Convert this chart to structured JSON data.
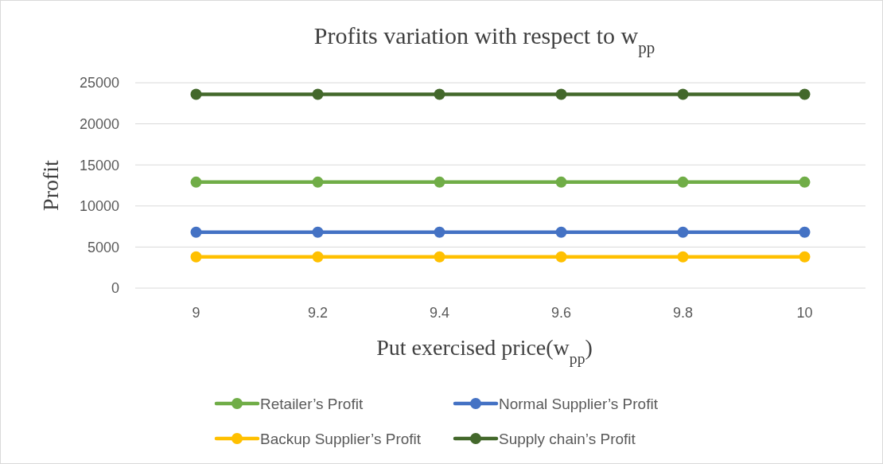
{
  "chart_data": {
    "type": "line",
    "title": "Profits variation with respect to w$_{pp}$",
    "xlabel": "Put exercised price(w$_{pp}$)",
    "ylabel": "Profit",
    "categories": [
      "9",
      "9.2",
      "9.4",
      "9.6",
      "9.8",
      "10"
    ],
    "series": [
      {
        "name": "Retailer’s Profit",
        "color": "#70ad47",
        "values": [
          12900,
          12900,
          12900,
          12900,
          12900,
          12900
        ]
      },
      {
        "name": "Normal Supplier’s Profit",
        "color": "#4472c4",
        "values": [
          6800,
          6800,
          6800,
          6800,
          6800,
          6800
        ]
      },
      {
        "name": "Backup Supplier’s Profit",
        "color": "#ffc000",
        "values": [
          3800,
          3800,
          3800,
          3800,
          3800,
          3800
        ]
      },
      {
        "name": "Supply chain’s Profit",
        "color": "#43682b",
        "values": [
          23600,
          23600,
          23600,
          23600,
          23600,
          23600
        ]
      }
    ],
    "ylim": [
      0,
      25000
    ],
    "yticks": [
      0,
      5000,
      10000,
      15000,
      20000,
      25000
    ],
    "grid": "y",
    "legend": "bottom",
    "marker": "circle",
    "line_style": "solid"
  }
}
